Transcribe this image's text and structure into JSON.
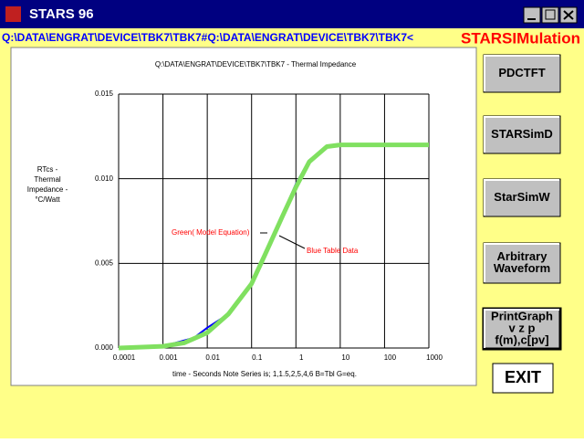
{
  "window": {
    "title": "STARS  96"
  },
  "path_bar": {
    "path": "Q:\\DATA\\ENGRAT\\DEVICE\\TBK7\\TBK7#Q:\\DATA\\ENGRAT\\DEVICE\\TBK7\\TBK7<",
    "app_name": "STARSIMulation"
  },
  "buttons": [
    "PDCTFT",
    "STARSimD",
    "StarSimW",
    [
      "Arbitrary",
      "Waveform"
    ],
    [
      "PrintGraph",
      "v z p",
      "f(m),c[pv]"
    ],
    "EXIT"
  ],
  "chart_data": {
    "type": "line",
    "title": "Q:\\DATA\\ENGRAT\\DEVICE\\TBK7\\TBK7 -  Thermal Impedance",
    "y_label": [
      "RTcs -",
      "Thermal",
      "Impedance -",
      "°C/Watt"
    ],
    "x_label": "time -   Seconds    Note Series is;  1,1.5,2,5,4,6   B=Tbl G=eq.",
    "xscale": "log",
    "grid": true,
    "xlim": [
      0.0001,
      1000
    ],
    "xticks": [
      0.0001,
      0.001,
      0.01,
      0.1,
      1,
      10,
      100,
      1000
    ],
    "ylim": [
      0,
      0.015
    ],
    "yticks": [
      {
        "value": 0,
        "label": "0.000"
      },
      {
        "value": 0.005,
        "label": "0.005"
      },
      {
        "value": 0.01,
        "label": "0.010"
      },
      {
        "value": 0.015,
        "label": "0.015"
      }
    ],
    "series": [
      {
        "name": "Blue Table Data",
        "color": "#0000ff",
        "x": [
          0.0001,
          0.001,
          0.005,
          0.01,
          0.03,
          0.1,
          0.2,
          0.5,
          1,
          2,
          5,
          10,
          100,
          1000
        ],
        "values": [
          0,
          0.0001,
          0.0006,
          0.0012,
          0.002,
          0.0039,
          0.0056,
          0.0079,
          0.0097,
          0.0111,
          0.0119,
          0.012,
          0.012,
          0.012
        ]
      },
      {
        "name": "Green( Model Equation)",
        "color": "#80e060",
        "x": [
          0.0001,
          0.001,
          0.003,
          0.01,
          0.03,
          0.1,
          0.2,
          0.5,
          1,
          2,
          5,
          10,
          100,
          1000
        ],
        "values": [
          0,
          0.0001,
          0.0003,
          0.0009,
          0.002,
          0.0038,
          0.0055,
          0.0078,
          0.0095,
          0.011,
          0.0119,
          0.012,
          0.012,
          0.012
        ]
      }
    ]
  }
}
